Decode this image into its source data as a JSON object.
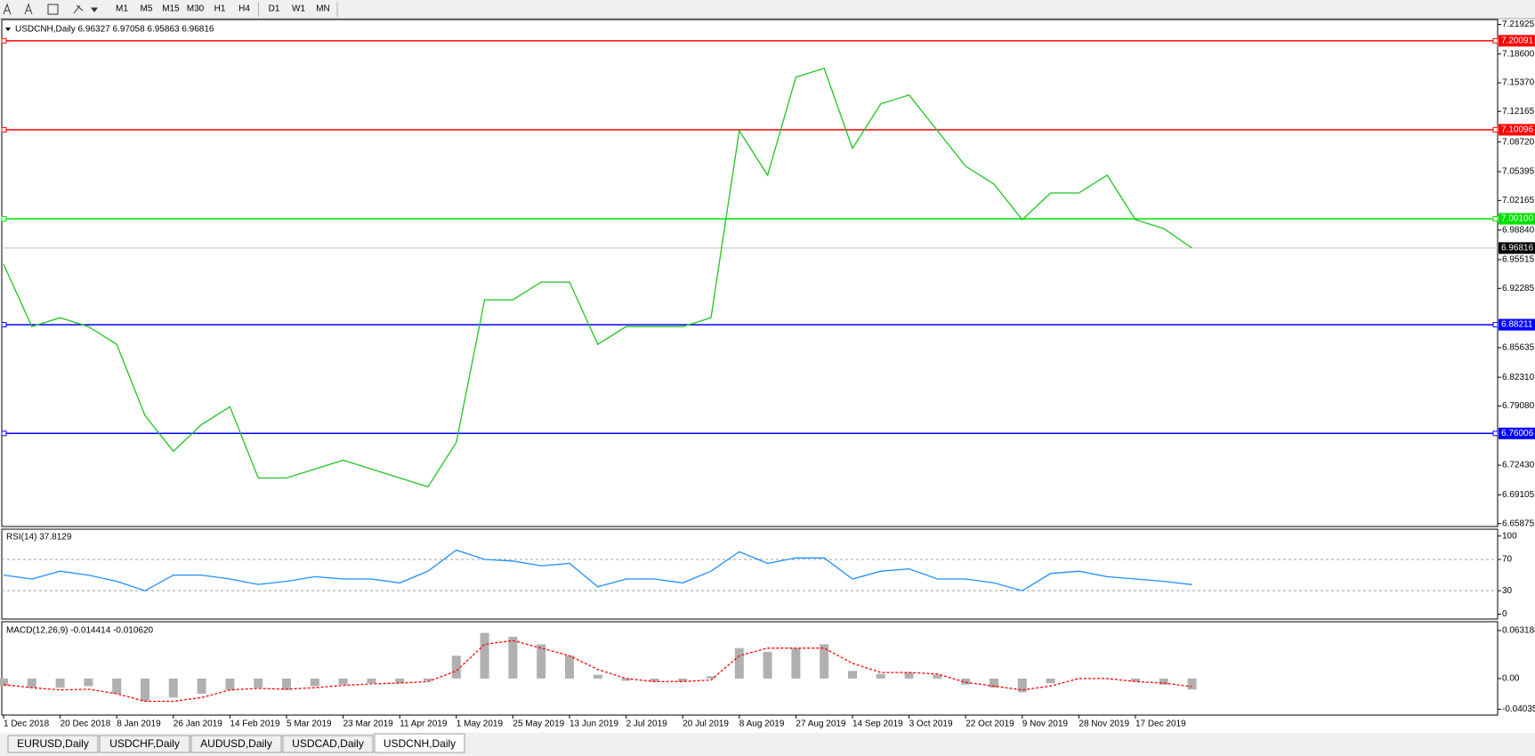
{
  "toolbar": {
    "timeframes": [
      "M1",
      "M5",
      "M15",
      "M30",
      "H1",
      "H4",
      "D1",
      "W1",
      "MN"
    ]
  },
  "tabs": [
    "EURUSD,Daily",
    "USDCHF,Daily",
    "AUDUSD,Daily",
    "USDCAD,Daily",
    "USDCNH,Daily"
  ],
  "chart_data": [
    {
      "type": "line",
      "title": "USDCNH,Daily  6.96327 6.97058 6.95863 6.96816",
      "categories": [
        "1 Dec 2018",
        null,
        "20 Dec 2018",
        null,
        "8 Jan 2019",
        null,
        "26 Jan 2019",
        null,
        "14 Feb 2019",
        null,
        "5 Mar 2019",
        null,
        "23 Mar 2019",
        null,
        "11 Apr 2019",
        null,
        "1 May 2019",
        null,
        "25 May 2019",
        null,
        "13 Jun 2019",
        null,
        "2 Jul 2019",
        null,
        "20 Jul 2019",
        null,
        "8 Aug 2019",
        null,
        "27 Aug 2019",
        null,
        "14 Sep 2019",
        null,
        "3 Oct 2019",
        null,
        "22 Oct 2019",
        null,
        "9 Nov 2019",
        null,
        "28 Nov 2019",
        null,
        "17 Dec 2019",
        null,
        null
      ],
      "values": [
        6.95,
        6.88,
        6.89,
        6.88,
        6.86,
        6.78,
        6.74,
        6.77,
        6.79,
        6.71,
        6.71,
        6.72,
        6.73,
        6.72,
        6.71,
        6.7,
        6.75,
        6.91,
        6.91,
        6.93,
        6.93,
        6.86,
        6.88,
        6.88,
        6.88,
        6.89,
        7.1,
        7.05,
        7.16,
        7.17,
        7.08,
        7.13,
        7.14,
        7.1,
        7.06,
        7.04,
        7.0,
        7.03,
        7.03,
        7.05,
        7.0,
        6.99,
        6.96816
      ],
      "color": "#22c322",
      "ylim": [
        6.6555,
        7.2247
      ],
      "yticks": [
        7.21925,
        {
          "value": 7.186,
          "label": "7.18600"
        },
        {
          "value": 7.1537,
          "label": "7.15370"
        },
        7.12165,
        {
          "value": 7.0872,
          "label": "7.08720"
        },
        7.05395,
        7.02165,
        {
          "value": 6.9884,
          "label": "6.98840"
        },
        6.95515,
        6.92285,
        6.85635,
        {
          "value": 6.8231,
          "label": "6.82310"
        },
        {
          "value": 6.7908,
          "label": "6.79080"
        },
        {
          "value": 6.7243,
          "label": "6.72430"
        },
        6.69105,
        6.65875
      ],
      "levels": [
        {
          "value": 7.20091,
          "label": "7.20091",
          "color": "#ff0000"
        },
        {
          "value": 7.10096,
          "label": "7.10096",
          "color": "#ff0000"
        },
        {
          "value": 7.001,
          "label": "7.00100",
          "color": "#00e000"
        },
        {
          "value": 6.88211,
          "label": "6.88211",
          "color": "#0000ff"
        },
        {
          "value": 6.76006,
          "label": "6.76006",
          "color": "#0000ff"
        }
      ],
      "last": 6.96816
    },
    {
      "type": "line",
      "title": "RSI(14) 37.8129",
      "values": [
        50,
        45,
        55,
        50,
        42,
        30,
        50,
        50,
        45,
        38,
        42,
        48,
        45,
        45,
        40,
        55,
        82,
        70,
        68,
        62,
        65,
        35,
        45,
        45,
        40,
        55,
        80,
        65,
        72,
        72,
        45,
        55,
        58,
        45,
        45,
        40,
        30,
        52,
        55,
        48,
        45,
        42,
        37.8129
      ],
      "color": "#1e90ff",
      "ylim": [
        -6.25,
        108.75
      ],
      "yticks": [
        100,
        70,
        30,
        0
      ],
      "levels": [
        70,
        30
      ]
    },
    {
      "type": "bar",
      "title": "MACD(12,26,9) -0.014414 -0.010620",
      "values": [
        -0.01,
        -0.012,
        -0.012,
        -0.01,
        -0.02,
        -0.03,
        -0.025,
        -0.02,
        -0.015,
        -0.012,
        -0.015,
        -0.01,
        -0.008,
        -0.006,
        -0.006,
        -0.003,
        0.03,
        0.06,
        0.055,
        0.045,
        0.03,
        0.005,
        -0.003,
        -0.004,
        -0.004,
        0.003,
        0.04,
        0.035,
        0.04,
        0.045,
        0.01,
        0.006,
        0.008,
        0.005,
        -0.008,
        -0.012,
        -0.018,
        -0.006,
        0.0,
        0.0,
        -0.004,
        -0.008,
        -0.014414
      ],
      "color": "#b0b0b0",
      "signal": {
        "values": [
          -0.008,
          -0.012,
          -0.015,
          -0.014,
          -0.02,
          -0.03,
          -0.03,
          -0.025,
          -0.015,
          -0.013,
          -0.014,
          -0.012,
          -0.009,
          -0.007,
          -0.006,
          -0.004,
          0.01,
          0.045,
          0.05,
          0.04,
          0.03,
          0.012,
          0.0,
          -0.004,
          -0.004,
          -0.002,
          0.03,
          0.04,
          0.04,
          0.04,
          0.02,
          0.008,
          0.008,
          0.006,
          -0.005,
          -0.01,
          -0.015,
          -0.01,
          0.0,
          0.0,
          -0.004,
          -0.006,
          -0.01062
        ],
        "color": "#ff0000"
      },
      "ylim": [
        -0.0481,
        0.0748
      ],
      "yticks": [
        0.063184,
        {
          "value": 0,
          "label": "0.00"
        },
        -0.040355
      ]
    }
  ]
}
